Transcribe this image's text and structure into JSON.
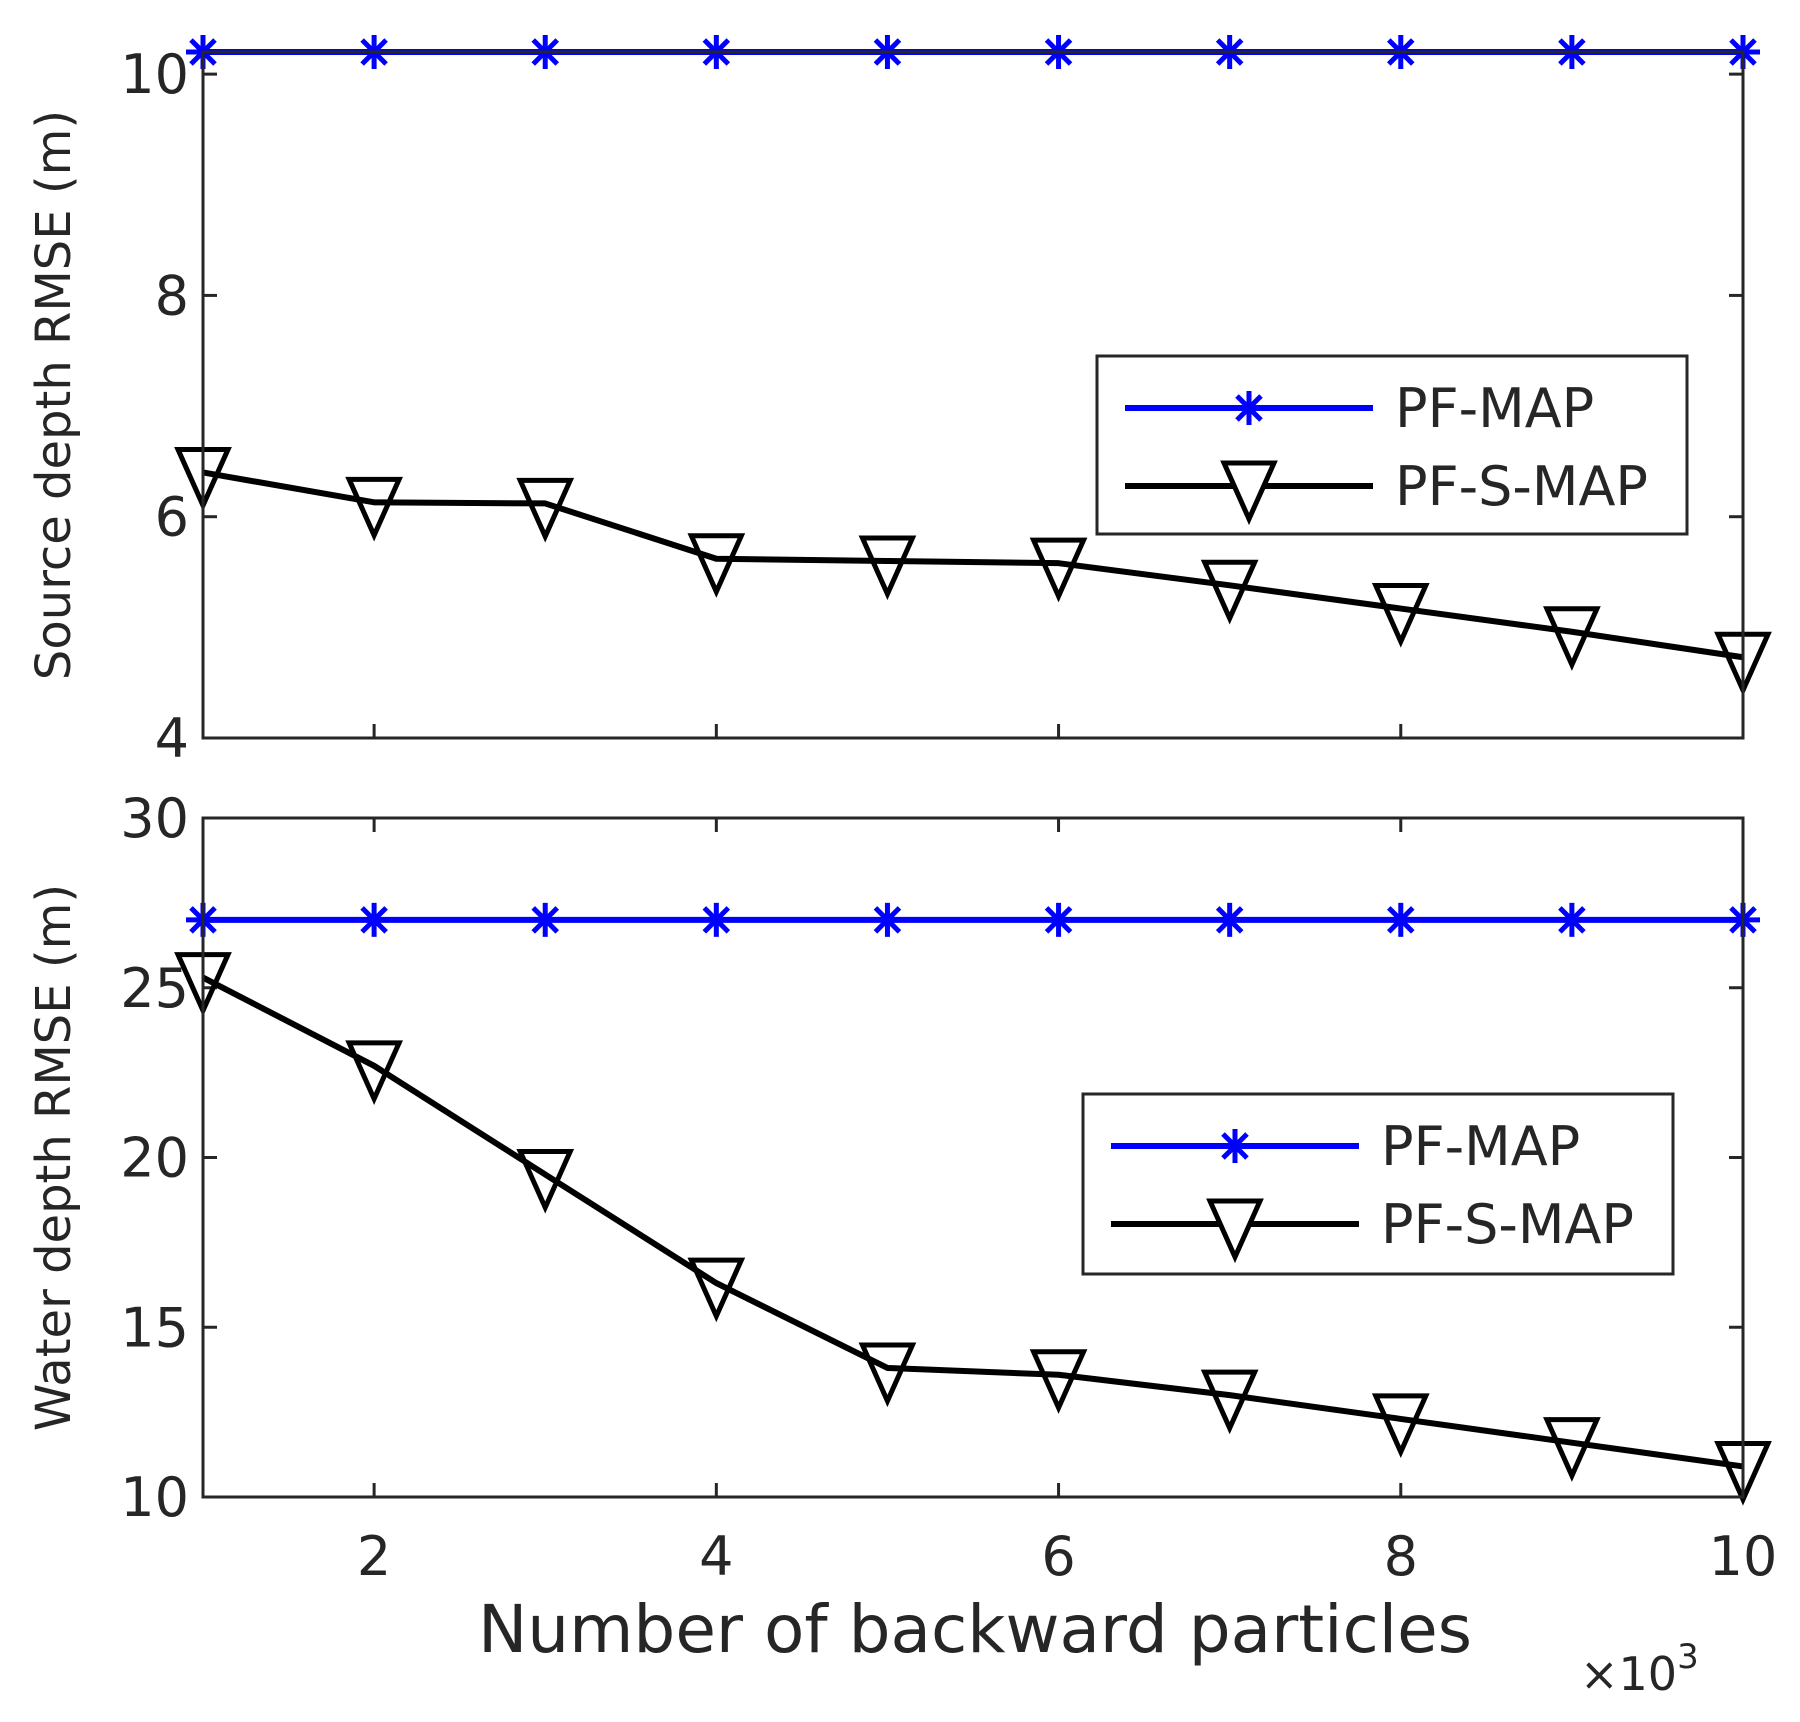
{
  "figure": {
    "xlabel": "Number of backward particles",
    "x_multiplier_base": "×10",
    "x_multiplier_exp": "3"
  },
  "colors": {
    "pf_map": "#0000ff",
    "pf_s_map": "#000000",
    "axes": "#262626",
    "background": "#ffffff"
  },
  "chart_data": [
    {
      "type": "line",
      "title": "",
      "xlabel": "",
      "ylabel": "Source depth RMSE (m)",
      "xlim": [
        1,
        10
      ],
      "ylim": [
        4,
        10.2
      ],
      "xticks": [
        2,
        4,
        6,
        8,
        10
      ],
      "yticks": [
        4,
        6,
        8,
        10
      ],
      "x_tick_labels_shown": false,
      "grid": false,
      "legend": {
        "placement": "right"
      },
      "x": [
        1,
        2,
        3,
        4,
        5,
        6,
        7,
        8,
        9,
        10
      ],
      "series": [
        {
          "name": "PF-MAP",
          "color": "#0000ff",
          "marker": "asterisk",
          "values": [
            10.2,
            10.2,
            10.2,
            10.2,
            10.2,
            10.2,
            10.2,
            10.2,
            10.2,
            10.2
          ]
        },
        {
          "name": "PF-S-MAP",
          "color": "#000000",
          "marker": "triangle-down",
          "values": [
            6.4,
            6.13,
            6.12,
            5.62,
            5.6,
            5.58,
            5.38,
            5.17,
            4.96,
            4.73
          ]
        }
      ]
    },
    {
      "type": "line",
      "title": "",
      "xlabel": "Number of backward particles",
      "ylabel": "Water depth RMSE (m)",
      "xlim": [
        1,
        10
      ],
      "ylim": [
        10,
        30
      ],
      "xticks": [
        2,
        4,
        6,
        8,
        10
      ],
      "yticks": [
        10,
        15,
        20,
        25,
        30
      ],
      "x_tick_labels_shown": true,
      "x_scale_note": "×10^3",
      "grid": false,
      "legend": {
        "placement": "right"
      },
      "x": [
        1,
        2,
        3,
        4,
        5,
        6,
        7,
        8,
        9,
        10
      ],
      "series": [
        {
          "name": "PF-MAP",
          "color": "#0000ff",
          "marker": "asterisk",
          "values": [
            27,
            27,
            27,
            27,
            27,
            27,
            27,
            27,
            27,
            27
          ]
        },
        {
          "name": "PF-S-MAP",
          "color": "#000000",
          "marker": "triangle-down",
          "values": [
            25.3,
            22.7,
            19.5,
            16.3,
            13.8,
            13.6,
            13.0,
            12.3,
            11.6,
            10.9
          ]
        }
      ]
    }
  ]
}
